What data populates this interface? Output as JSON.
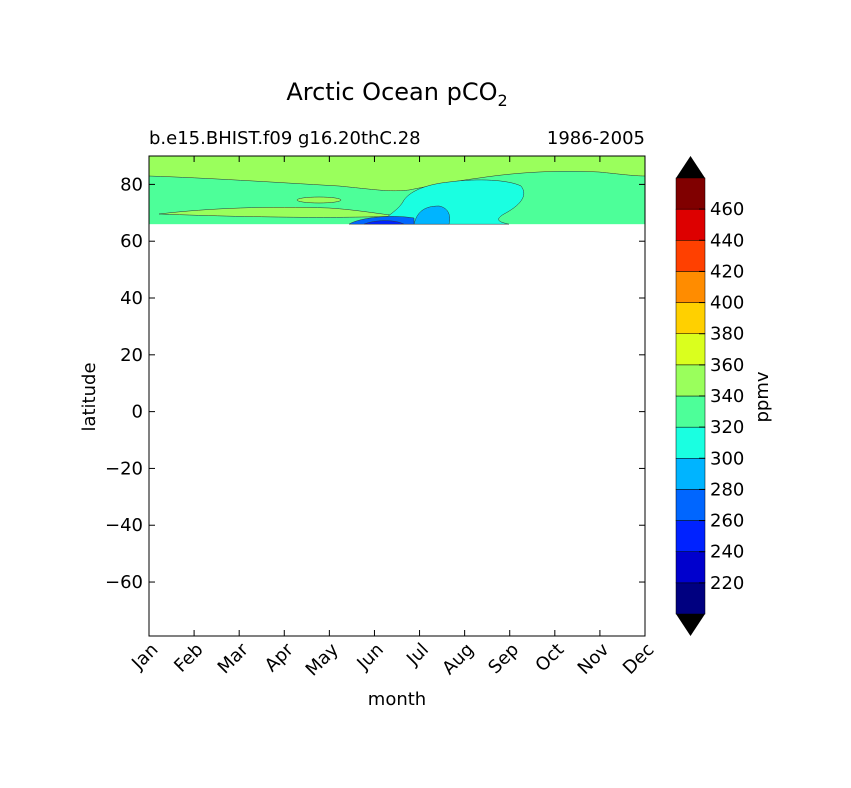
{
  "chart_data": {
    "type": "contourf",
    "title": "Arctic Ocean pCO",
    "title_subscript": "2",
    "subtitle_left": "b.e15.BHIST.f09 g16.20thC.28",
    "subtitle_right": "1986-2005",
    "xlabel": "month",
    "ylabel": "latitude",
    "x_categories": [
      "Jan",
      "Feb",
      "Mar",
      "Apr",
      "May",
      "Jun",
      "Jul",
      "Aug",
      "Sep",
      "Oct",
      "Nov",
      "Dec"
    ],
    "ylim": [
      -79,
      90
    ],
    "y_ticks": [
      -60,
      -40,
      -20,
      0,
      20,
      40,
      60,
      80
    ],
    "y_tick_labels": [
      "−60",
      "−40",
      "−20",
      "0",
      "20",
      "40",
      "60",
      "80"
    ],
    "data_lat_range": [
      66,
      90
    ],
    "field_summary": {
      "background_ppmv": 330,
      "north_band_ppmv": 350,
      "summer_low_ppmv": 310,
      "min_ppmv": 240
    },
    "colorbar": {
      "label": "ppmv",
      "extend": "both",
      "levels": [
        200,
        220,
        240,
        260,
        280,
        300,
        320,
        340,
        360,
        380,
        400,
        420,
        440,
        460,
        480
      ],
      "tick_values": [
        220,
        240,
        260,
        280,
        300,
        320,
        340,
        360,
        380,
        400,
        420,
        440,
        460
      ],
      "colors": [
        "#000080",
        "#0000cd",
        "#0022ff",
        "#0066ff",
        "#00b4ff",
        "#1affe1",
        "#4dff99",
        "#9aff5c",
        "#daff1e",
        "#ffd000",
        "#ff8c00",
        "#ff4000",
        "#dd0000",
        "#800000"
      ],
      "under_color": "#000000",
      "over_color": "#000000"
    }
  }
}
